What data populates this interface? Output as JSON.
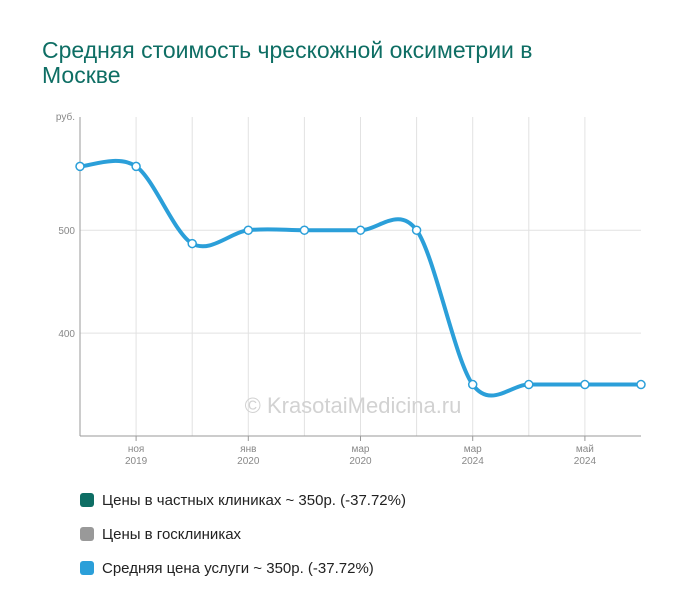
{
  "title": "Средняя стоимость чрескожной оксиметрии в Москве",
  "watermark": "© KrasotaiMedicina.ru",
  "chart_data": {
    "type": "line",
    "y_unit_label": "руб.",
    "y_ticks": [
      400,
      500
    ],
    "ylim": [
      300,
      610
    ],
    "x_tick_labels": [
      {
        "index": 1,
        "month": "ноя",
        "year": "2019"
      },
      {
        "index": 3,
        "month": "янв",
        "year": "2020"
      },
      {
        "index": 5,
        "month": "мар",
        "year": "2020"
      },
      {
        "index": 7,
        "month": "мар",
        "year": "2024"
      },
      {
        "index": 9,
        "month": "май",
        "year": "2024"
      }
    ],
    "grid": true,
    "legend_position": "bottom",
    "series": [
      {
        "name": "Средняя цена услуги",
        "color": "#2b9fd9",
        "values": [
          562,
          562,
          487,
          500,
          500,
          500,
          500,
          350,
          350,
          350,
          350
        ]
      }
    ]
  },
  "legend": [
    {
      "label": "Цены в частных клиниках ~ 350р. (-37.72%)",
      "color": "#0e6e64"
    },
    {
      "label": "Цены в госклиниках",
      "color": "#999999"
    },
    {
      "label": "Средняя цена услуги ~ 350р. (-37.72%)",
      "color": "#2b9fd9"
    }
  ]
}
